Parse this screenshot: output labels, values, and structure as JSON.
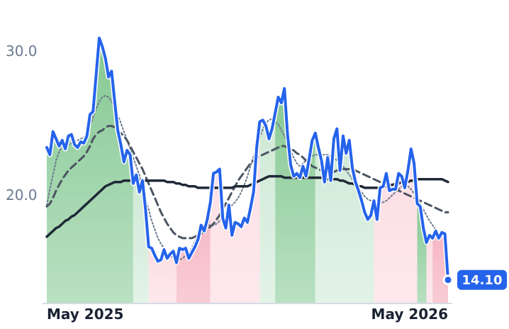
{
  "chart_data": {
    "type": "line",
    "x_labels": [
      "May 2025",
      "May 2026"
    ],
    "y_ticks": [
      "30.0",
      "20.0"
    ],
    "y_tick_values": [
      30,
      20
    ],
    "ylim": [
      12.4,
      33.4
    ],
    "last_value_label": "14.10",
    "colors": {
      "price": "#2563eb",
      "ma_long": "#1f2937",
      "ma_mid": "#4b5563",
      "ma_short": "#6b7a8f",
      "up_strong": "#86c993",
      "up_light": "#cfe9d6",
      "down_strong": "#f6b6c3",
      "down_light": "#fcdde3",
      "badge": "#2563eb"
    },
    "price": [
      23.3,
      22.8,
      24.4,
      23.9,
      23.4,
      23.8,
      23.2,
      24.1,
      24.2,
      23.5,
      23.3,
      23.7,
      23.6,
      24.1,
      25.6,
      25.8,
      28.4,
      30.9,
      30.3,
      29.5,
      28.2,
      28.6,
      26.5,
      24.5,
      23.5,
      22.3,
      23.1,
      22.8,
      20.8,
      21.4,
      20.2,
      21.0,
      19.0,
      16.4,
      16.3,
      15.8,
      15.4,
      15.5,
      16.2,
      15.6,
      15.9,
      16.1,
      15.3,
      16.3,
      16.2,
      16.3,
      15.6,
      16.0,
      16.4,
      16.9,
      17.9,
      17.5,
      18.3,
      19.5,
      21.5,
      21.6,
      21.8,
      18.4,
      17.7,
      19.3,
      17.2,
      18.1,
      18.0,
      17.8,
      18.4,
      18.1,
      19.1,
      20.2,
      23.3,
      25.1,
      25.2,
      24.8,
      23.9,
      24.6,
      25.7,
      26.8,
      26.4,
      27.4,
      24.2,
      22.1,
      21.3,
      21.5,
      21.2,
      22.0,
      21.3,
      22.5,
      23.8,
      24.3,
      23.3,
      22.4,
      20.9,
      22.6,
      21.0,
      23.9,
      24.6,
      21.7,
      24.1,
      22.9,
      23.8,
      21.9,
      20.9,
      20.3,
      19.6,
      18.8,
      18.3,
      18.6,
      19.6,
      18.3,
      20.5,
      20.6,
      21.5,
      20.3,
      20.4,
      20.4,
      21.5,
      21.3,
      20.5,
      21.7,
      23.2,
      22.2,
      19.4,
      19.2,
      17.7,
      16.7,
      17.2,
      17.0,
      17.5,
      17.0,
      17.4,
      17.3,
      14.1
    ],
    "ma_short": [
      19.3,
      20.4,
      21.4,
      22.4,
      23.0,
      23.4,
      23.5,
      23.5,
      23.6,
      23.7,
      23.8,
      23.9,
      24.0,
      24.3,
      24.8,
      25.4,
      26.0,
      26.5,
      26.8,
      26.9,
      26.8,
      26.5,
      26.1,
      25.6,
      25.0,
      24.4,
      23.8,
      23.2,
      22.6,
      22.0,
      21.4,
      20.6,
      19.8,
      19.0,
      18.2,
      17.6,
      17.0,
      16.6,
      16.3,
      16.0,
      15.8,
      15.6,
      15.5,
      15.5,
      15.6,
      15.8,
      16.0,
      16.3,
      16.8,
      17.2,
      17.6,
      17.8,
      17.9,
      17.9,
      17.9,
      18.0,
      18.2,
      18.4,
      18.7,
      19.0,
      19.3,
      19.5,
      19.8,
      20.2,
      20.7,
      21.3,
      22.0,
      22.7,
      23.4,
      24.0,
      24.6,
      25.0,
      25.2,
      25.3,
      25.1,
      24.9,
      24.5,
      24.1,
      23.6,
      23.1,
      22.6,
      22.2,
      22.0,
      22.2,
      22.4,
      22.6,
      22.7,
      22.8,
      22.8,
      22.8,
      22.8,
      22.8,
      22.7,
      22.6,
      22.4,
      22.2,
      22.0,
      21.7,
      21.4,
      21.1,
      20.8,
      20.5,
      20.2,
      19.9,
      19.7,
      19.6,
      19.5,
      19.4,
      19.4,
      19.5,
      19.6,
      19.8,
      20.0,
      20.2,
      20.4,
      20.6,
      20.7,
      20.6,
      20.4,
      20.1,
      19.8,
      19.4,
      19.0,
      18.6,
      18.2,
      17.9,
      17.6,
      17.4,
      17.2,
      17.1,
      17.0
    ],
    "ma_mid": [
      19.2,
      19.4,
      19.8,
      20.3,
      20.7,
      21.1,
      21.4,
      21.7,
      21.9,
      22.1,
      22.3,
      22.5,
      22.7,
      23.0,
      23.4,
      23.9,
      24.2,
      24.4,
      24.5,
      24.7,
      24.8,
      24.8,
      24.7,
      24.5,
      24.3,
      24.1,
      23.8,
      23.4,
      23.0,
      22.6,
      22.2,
      21.8,
      21.3,
      20.8,
      20.3,
      19.8,
      19.3,
      18.8,
      18.4,
      18.0,
      17.7,
      17.4,
      17.2,
      17.1,
      17.0,
      17.0,
      17.0,
      17.0,
      17.1,
      17.2,
      17.3,
      17.5,
      17.6,
      17.8,
      18.0,
      18.3,
      18.6,
      19.0,
      19.4,
      19.8,
      20.2,
      20.6,
      21.0,
      21.3,
      21.6,
      21.9,
      22.2,
      22.4,
      22.6,
      22.7,
      22.8,
      22.9,
      23.0,
      23.1,
      23.2,
      23.3,
      23.4,
      23.4,
      23.3,
      23.2,
      23.1,
      22.9,
      22.8,
      22.6,
      22.4,
      22.2,
      22.0,
      21.9,
      21.8,
      21.7,
      21.6,
      21.6,
      21.6,
      21.6,
      21.7,
      21.8,
      21.8,
      21.8,
      21.8,
      21.8,
      21.7,
      21.6,
      21.5,
      21.4,
      21.3,
      21.2,
      21.1,
      21.0,
      20.9,
      20.8,
      20.7,
      20.6,
      20.5,
      20.4,
      20.3,
      20.2,
      20.1,
      20.0,
      19.9,
      19.8,
      19.7,
      19.6,
      19.5,
      19.4,
      19.3,
      19.2,
      19.1,
      19.0,
      18.9,
      18.8,
      18.8
    ],
    "ma_long": [
      17.1,
      17.3,
      17.5,
      17.7,
      17.8,
      18.0,
      18.2,
      18.3,
      18.5,
      18.6,
      18.8,
      19.0,
      19.2,
      19.4,
      19.6,
      19.8,
      20.0,
      20.2,
      20.4,
      20.6,
      20.7,
      20.8,
      20.9,
      20.9,
      20.9,
      21.0,
      21.0,
      21.0,
      21.0,
      21.0,
      21.0,
      21.0,
      21.0,
      21.0,
      21.0,
      21.0,
      21.0,
      21.0,
      21.0,
      20.9,
      20.9,
      20.9,
      20.8,
      20.8,
      20.7,
      20.7,
      20.6,
      20.6,
      20.6,
      20.5,
      20.5,
      20.5,
      20.5,
      20.5,
      20.5,
      20.5,
      20.5,
      20.5,
      20.5,
      20.5,
      20.5,
      20.6,
      20.6,
      20.6,
      20.6,
      20.6,
      20.7,
      20.8,
      20.9,
      21.0,
      21.1,
      21.2,
      21.3,
      21.3,
      21.3,
      21.3,
      21.3,
      21.2,
      21.2,
      21.2,
      21.2,
      21.2,
      21.2,
      21.2,
      21.2,
      21.2,
      21.2,
      21.2,
      21.2,
      21.2,
      21.2,
      21.1,
      21.1,
      21.1,
      21.1,
      21.0,
      21.0,
      20.9,
      20.8,
      20.8,
      20.7,
      20.6,
      20.6,
      20.5,
      20.5,
      20.5,
      20.5,
      20.5,
      20.5,
      20.6,
      20.6,
      20.7,
      20.7,
      20.8,
      20.8,
      20.9,
      20.9,
      20.9,
      21.0,
      21.0,
      21.1,
      21.1,
      21.1,
      21.1,
      21.1,
      21.1,
      21.1,
      21.1,
      21.1,
      21.0,
      20.9
    ],
    "zones": [
      {
        "start": 0,
        "end": 27,
        "kind": "up_strong"
      },
      {
        "start": 28,
        "end": 32,
        "kind": "up_light"
      },
      {
        "start": 33,
        "end": 41,
        "kind": "down_light"
      },
      {
        "start": 42,
        "end": 52,
        "kind": "down_strong"
      },
      {
        "start": 53,
        "end": 68,
        "kind": "down_light"
      },
      {
        "start": 69,
        "end": 73,
        "kind": "up_light"
      },
      {
        "start": 74,
        "end": 86,
        "kind": "up_strong"
      },
      {
        "start": 87,
        "end": 105,
        "kind": "up_light"
      },
      {
        "start": 106,
        "end": 119,
        "kind": "down_light"
      },
      {
        "start": 120,
        "end": 122,
        "kind": "up_strong"
      },
      {
        "start": 123,
        "end": 124,
        "kind": "down_light"
      },
      {
        "start": 125,
        "end": 130,
        "kind": "down_strong"
      }
    ]
  }
}
